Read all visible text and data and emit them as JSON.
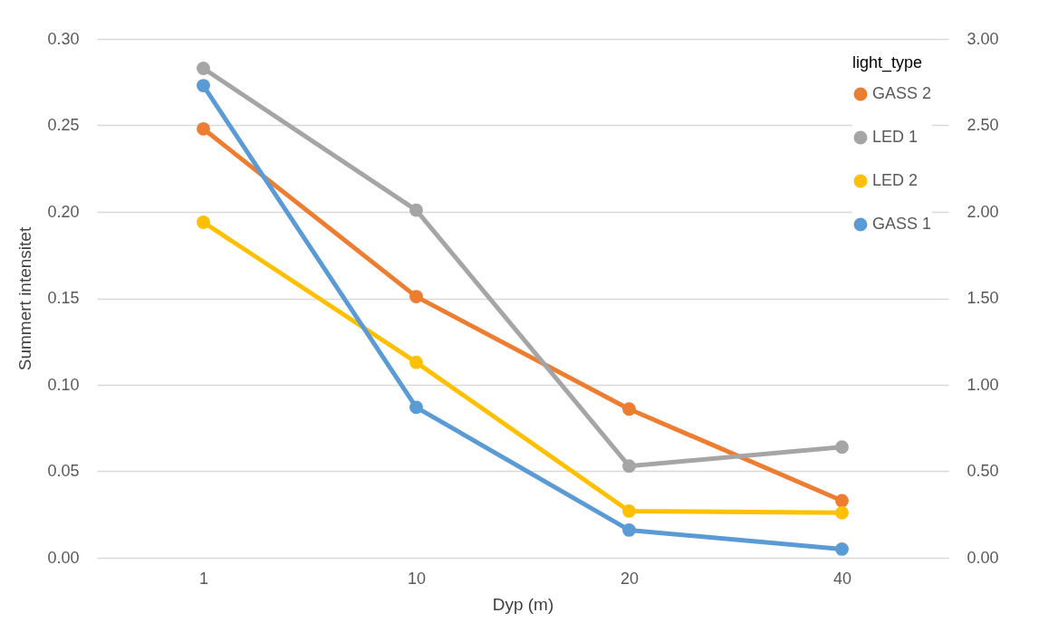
{
  "chart_data": {
    "type": "line",
    "xlabel": "Dyp (m)",
    "ylabel": "Summert intensitet",
    "legend_title": "light_type",
    "categories": [
      "1",
      "10",
      "20",
      "40"
    ],
    "series": [
      {
        "name": "GASS 2",
        "color": "#ed7d31",
        "values": [
          0.248,
          0.151,
          0.086,
          0.033
        ]
      },
      {
        "name": "LED 1",
        "color": "#a5a5a5",
        "values": [
          0.283,
          0.201,
          0.053,
          0.064
        ]
      },
      {
        "name": "LED 2",
        "color": "#ffc000",
        "values": [
          0.194,
          0.113,
          0.027,
          0.026
        ]
      },
      {
        "name": "GASS 1",
        "color": "#5b9bd5",
        "axis": "y2",
        "values": [
          2.73,
          0.87,
          0.16,
          0.05
        ]
      }
    ],
    "ylim": [
      0,
      0.3
    ],
    "yticks": [
      {
        "value": 0,
        "label": "0.00"
      },
      0.05,
      {
        "value": 0.1,
        "label": "0.10"
      },
      0.15,
      {
        "value": 0.2,
        "label": "0.20"
      },
      0.25,
      {
        "value": 0.3,
        "label": "0.30"
      }
    ],
    "y2lim": [
      0,
      3
    ],
    "y2ticks": [
      {
        "value": 0,
        "label": "0.00"
      },
      {
        "value": 0.5,
        "label": "0.50"
      },
      {
        "value": 1,
        "label": "1.00"
      },
      {
        "value": 1.5,
        "label": "1.50"
      },
      {
        "value": 2,
        "label": "2.00"
      },
      {
        "value": 2.5,
        "label": "2.50"
      },
      {
        "value": 3,
        "label": "3.00"
      }
    ],
    "grid": "y",
    "legend": "top right",
    "marker": "circle",
    "line_style": "solid"
  }
}
